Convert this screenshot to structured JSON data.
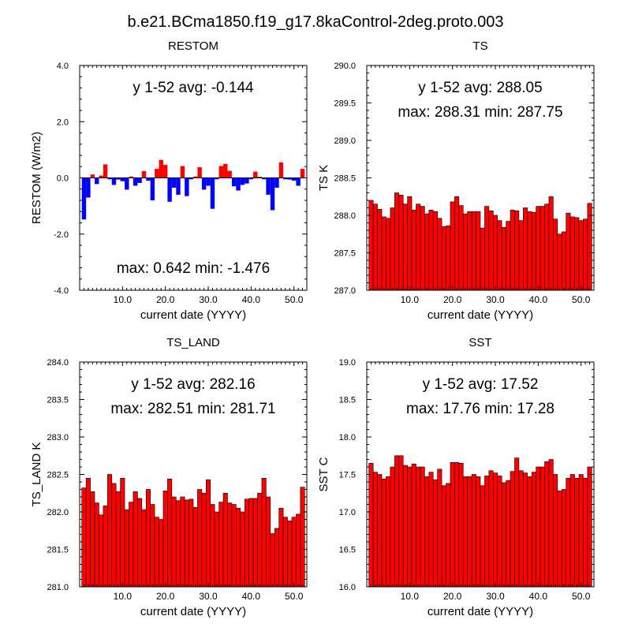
{
  "figure_title": "b.e21.BCma1850.f19_g17.8kaControl-2deg.proto.003",
  "colors": {
    "positive": "#ff0000",
    "negative": "#0000ff",
    "bar_edge": "#000000"
  },
  "chart_data": [
    {
      "type": "bar",
      "title": "RESTOM",
      "xlabel": "current date (YYYY)",
      "ylabel": "RESTOM (W/m2)",
      "xlim": [
        0,
        53
      ],
      "ylim": [
        -4.0,
        4.0
      ],
      "xticks": [
        10,
        20,
        30,
        40,
        50
      ],
      "xtick_labels": [
        "10.0",
        "20.0",
        "30.0",
        "40.0",
        "50.0"
      ],
      "yticks": [
        -4,
        -2,
        0,
        2,
        4
      ],
      "ytick_labels": [
        "-4.0",
        "-2.0",
        "0.0",
        "2.0",
        "4.0"
      ],
      "baseline": 0,
      "bicolor": true,
      "annotation_top": "y 1-52 avg: -0.144",
      "annotation_bottom": "max: 0.642 min: -1.476",
      "x": [
        1,
        2,
        3,
        4,
        5,
        6,
        7,
        8,
        9,
        10,
        11,
        12,
        13,
        14,
        15,
        16,
        17,
        18,
        19,
        20,
        21,
        22,
        23,
        24,
        25,
        26,
        27,
        28,
        29,
        30,
        31,
        32,
        33,
        34,
        35,
        36,
        37,
        38,
        39,
        40,
        41,
        42,
        43,
        44,
        45,
        46,
        47,
        48,
        49,
        50,
        51,
        52
      ],
      "values": [
        -1.48,
        -0.7,
        0.12,
        -0.22,
        0.08,
        0.48,
        -0.05,
        -0.25,
        -0.06,
        -0.12,
        -0.42,
        0.05,
        -0.28,
        -0.18,
        0.24,
        -0.1,
        -0.8,
        0.32,
        0.64,
        0.46,
        -0.85,
        -0.35,
        -0.6,
        0.42,
        -0.65,
        -0.05,
        0.05,
        0.38,
        -0.42,
        -0.28,
        -1.1,
        -0.05,
        0.42,
        0.5,
        0.25,
        -0.3,
        -0.45,
        -0.25,
        -0.2,
        -0.05,
        0.22,
        0.04,
        -0.05,
        -0.6,
        -1.15,
        -0.35,
        0.55,
        -0.05,
        -0.06,
        -0.1,
        -0.28,
        0.32
      ]
    },
    {
      "type": "bar",
      "title": "TS",
      "xlabel": "current date (YYYY)",
      "ylabel": "TS K",
      "xlim": [
        0,
        53
      ],
      "ylim": [
        287.0,
        290.0
      ],
      "xticks": [
        10,
        20,
        30,
        40,
        50
      ],
      "xtick_labels": [
        "10.0",
        "20.0",
        "30.0",
        "40.0",
        "50.0"
      ],
      "yticks": [
        287.0,
        287.5,
        288.0,
        288.5,
        289.0,
        289.5,
        290.0
      ],
      "ytick_labels": [
        "287.0",
        "287.5",
        "288.0",
        "288.5",
        "289.0",
        "289.5",
        "290.0"
      ],
      "baseline": 287.0,
      "bicolor": false,
      "annotation_top": "y 1-52 avg: 288.05",
      "annotation_bottom": "max: 288.31 min: 287.75",
      "x": [
        1,
        2,
        3,
        4,
        5,
        6,
        7,
        8,
        9,
        10,
        11,
        12,
        13,
        14,
        15,
        16,
        17,
        18,
        19,
        20,
        21,
        22,
        23,
        24,
        25,
        26,
        27,
        28,
        29,
        30,
        31,
        32,
        33,
        34,
        35,
        36,
        37,
        38,
        39,
        40,
        41,
        42,
        43,
        44,
        45,
        46,
        47,
        48,
        49,
        50,
        51,
        52
      ],
      "values": [
        288.2,
        288.15,
        288.08,
        287.98,
        287.96,
        288.1,
        288.3,
        288.27,
        288.15,
        288.25,
        288.07,
        288.15,
        288.12,
        288.02,
        288.07,
        288.05,
        287.96,
        287.85,
        287.86,
        288.18,
        288.25,
        288.13,
        288.02,
        288.05,
        288.05,
        288.05,
        287.83,
        288.12,
        288.06,
        288.0,
        287.93,
        287.84,
        287.92,
        288.07,
        288.06,
        287.93,
        288.1,
        288.05,
        288.04,
        288.12,
        288.12,
        288.15,
        288.25,
        287.95,
        287.75,
        287.78,
        288.03,
        287.98,
        287.97,
        287.93,
        287.95,
        288.16
      ]
    },
    {
      "type": "bar",
      "title": "TS_LAND",
      "xlabel": "current date (YYYY)",
      "ylabel": "TS_LAND K",
      "xlim": [
        0,
        53
      ],
      "ylim": [
        281.0,
        284.0
      ],
      "xticks": [
        10,
        20,
        30,
        40,
        50
      ],
      "xtick_labels": [
        "10.0",
        "20.0",
        "30.0",
        "40.0",
        "50.0"
      ],
      "yticks": [
        281.0,
        281.5,
        282.0,
        282.5,
        283.0,
        283.5,
        284.0
      ],
      "ytick_labels": [
        "281.0",
        "281.5",
        "282.0",
        "282.5",
        "283.0",
        "283.5",
        "284.0"
      ],
      "baseline": 281.0,
      "bicolor": false,
      "annotation_top": "y 1-52 avg: 282.16",
      "annotation_bottom": "max: 282.51 min: 281.71",
      "x": [
        1,
        2,
        3,
        4,
        5,
        6,
        7,
        8,
        9,
        10,
        11,
        12,
        13,
        14,
        15,
        16,
        17,
        18,
        19,
        20,
        21,
        22,
        23,
        24,
        25,
        26,
        27,
        28,
        29,
        30,
        31,
        32,
        33,
        34,
        35,
        36,
        37,
        38,
        39,
        40,
        41,
        42,
        43,
        44,
        45,
        46,
        47,
        48,
        49,
        50,
        51,
        52
      ],
      "values": [
        282.32,
        282.45,
        282.27,
        282.12,
        281.96,
        282.08,
        282.5,
        282.38,
        282.27,
        282.45,
        282.03,
        282.13,
        282.27,
        282.18,
        282.03,
        282.3,
        282.1,
        281.93,
        281.9,
        282.28,
        282.44,
        282.2,
        282.15,
        282.2,
        282.16,
        282.17,
        282.06,
        282.3,
        282.25,
        282.43,
        282.1,
        282.0,
        282.13,
        282.25,
        282.12,
        282.1,
        282.05,
        282.0,
        282.17,
        282.18,
        282.18,
        282.25,
        282.45,
        282.2,
        281.71,
        281.78,
        282.05,
        281.93,
        281.88,
        281.93,
        281.97,
        282.33
      ]
    },
    {
      "type": "bar",
      "title": "SST",
      "xlabel": "current date (YYYY)",
      "ylabel": "SST C",
      "xlim": [
        0,
        53
      ],
      "ylim": [
        16.0,
        19.0
      ],
      "xticks": [
        10,
        20,
        30,
        40,
        50
      ],
      "xtick_labels": [
        "10.0",
        "20.0",
        "30.0",
        "40.0",
        "50.0"
      ],
      "yticks": [
        16.0,
        16.5,
        17.0,
        17.5,
        18.0,
        18.5,
        19.0
      ],
      "ytick_labels": [
        "16.0",
        "16.5",
        "17.0",
        "17.5",
        "18.0",
        "18.5",
        "19.0"
      ],
      "baseline": 16.0,
      "bicolor": false,
      "annotation_top": "y 1-52 avg: 17.52",
      "annotation_bottom": "max: 17.76 min: 17.28",
      "x": [
        1,
        2,
        3,
        4,
        5,
        6,
        7,
        8,
        9,
        10,
        11,
        12,
        13,
        14,
        15,
        16,
        17,
        18,
        19,
        20,
        21,
        22,
        23,
        24,
        25,
        26,
        27,
        28,
        29,
        30,
        31,
        32,
        33,
        34,
        35,
        36,
        37,
        38,
        39,
        40,
        41,
        42,
        43,
        44,
        45,
        46,
        47,
        48,
        49,
        50,
        51,
        52
      ],
      "values": [
        17.65,
        17.53,
        17.5,
        17.44,
        17.47,
        17.6,
        17.75,
        17.75,
        17.62,
        17.6,
        17.64,
        17.6,
        17.6,
        17.47,
        17.53,
        17.43,
        17.57,
        17.35,
        17.38,
        17.66,
        17.66,
        17.65,
        17.47,
        17.47,
        17.5,
        17.47,
        17.35,
        17.48,
        17.55,
        17.52,
        17.48,
        17.39,
        17.42,
        17.54,
        17.72,
        17.55,
        17.52,
        17.47,
        17.53,
        17.6,
        17.6,
        17.67,
        17.7,
        17.5,
        17.28,
        17.3,
        17.45,
        17.5,
        17.45,
        17.5,
        17.45,
        17.6
      ]
    }
  ]
}
